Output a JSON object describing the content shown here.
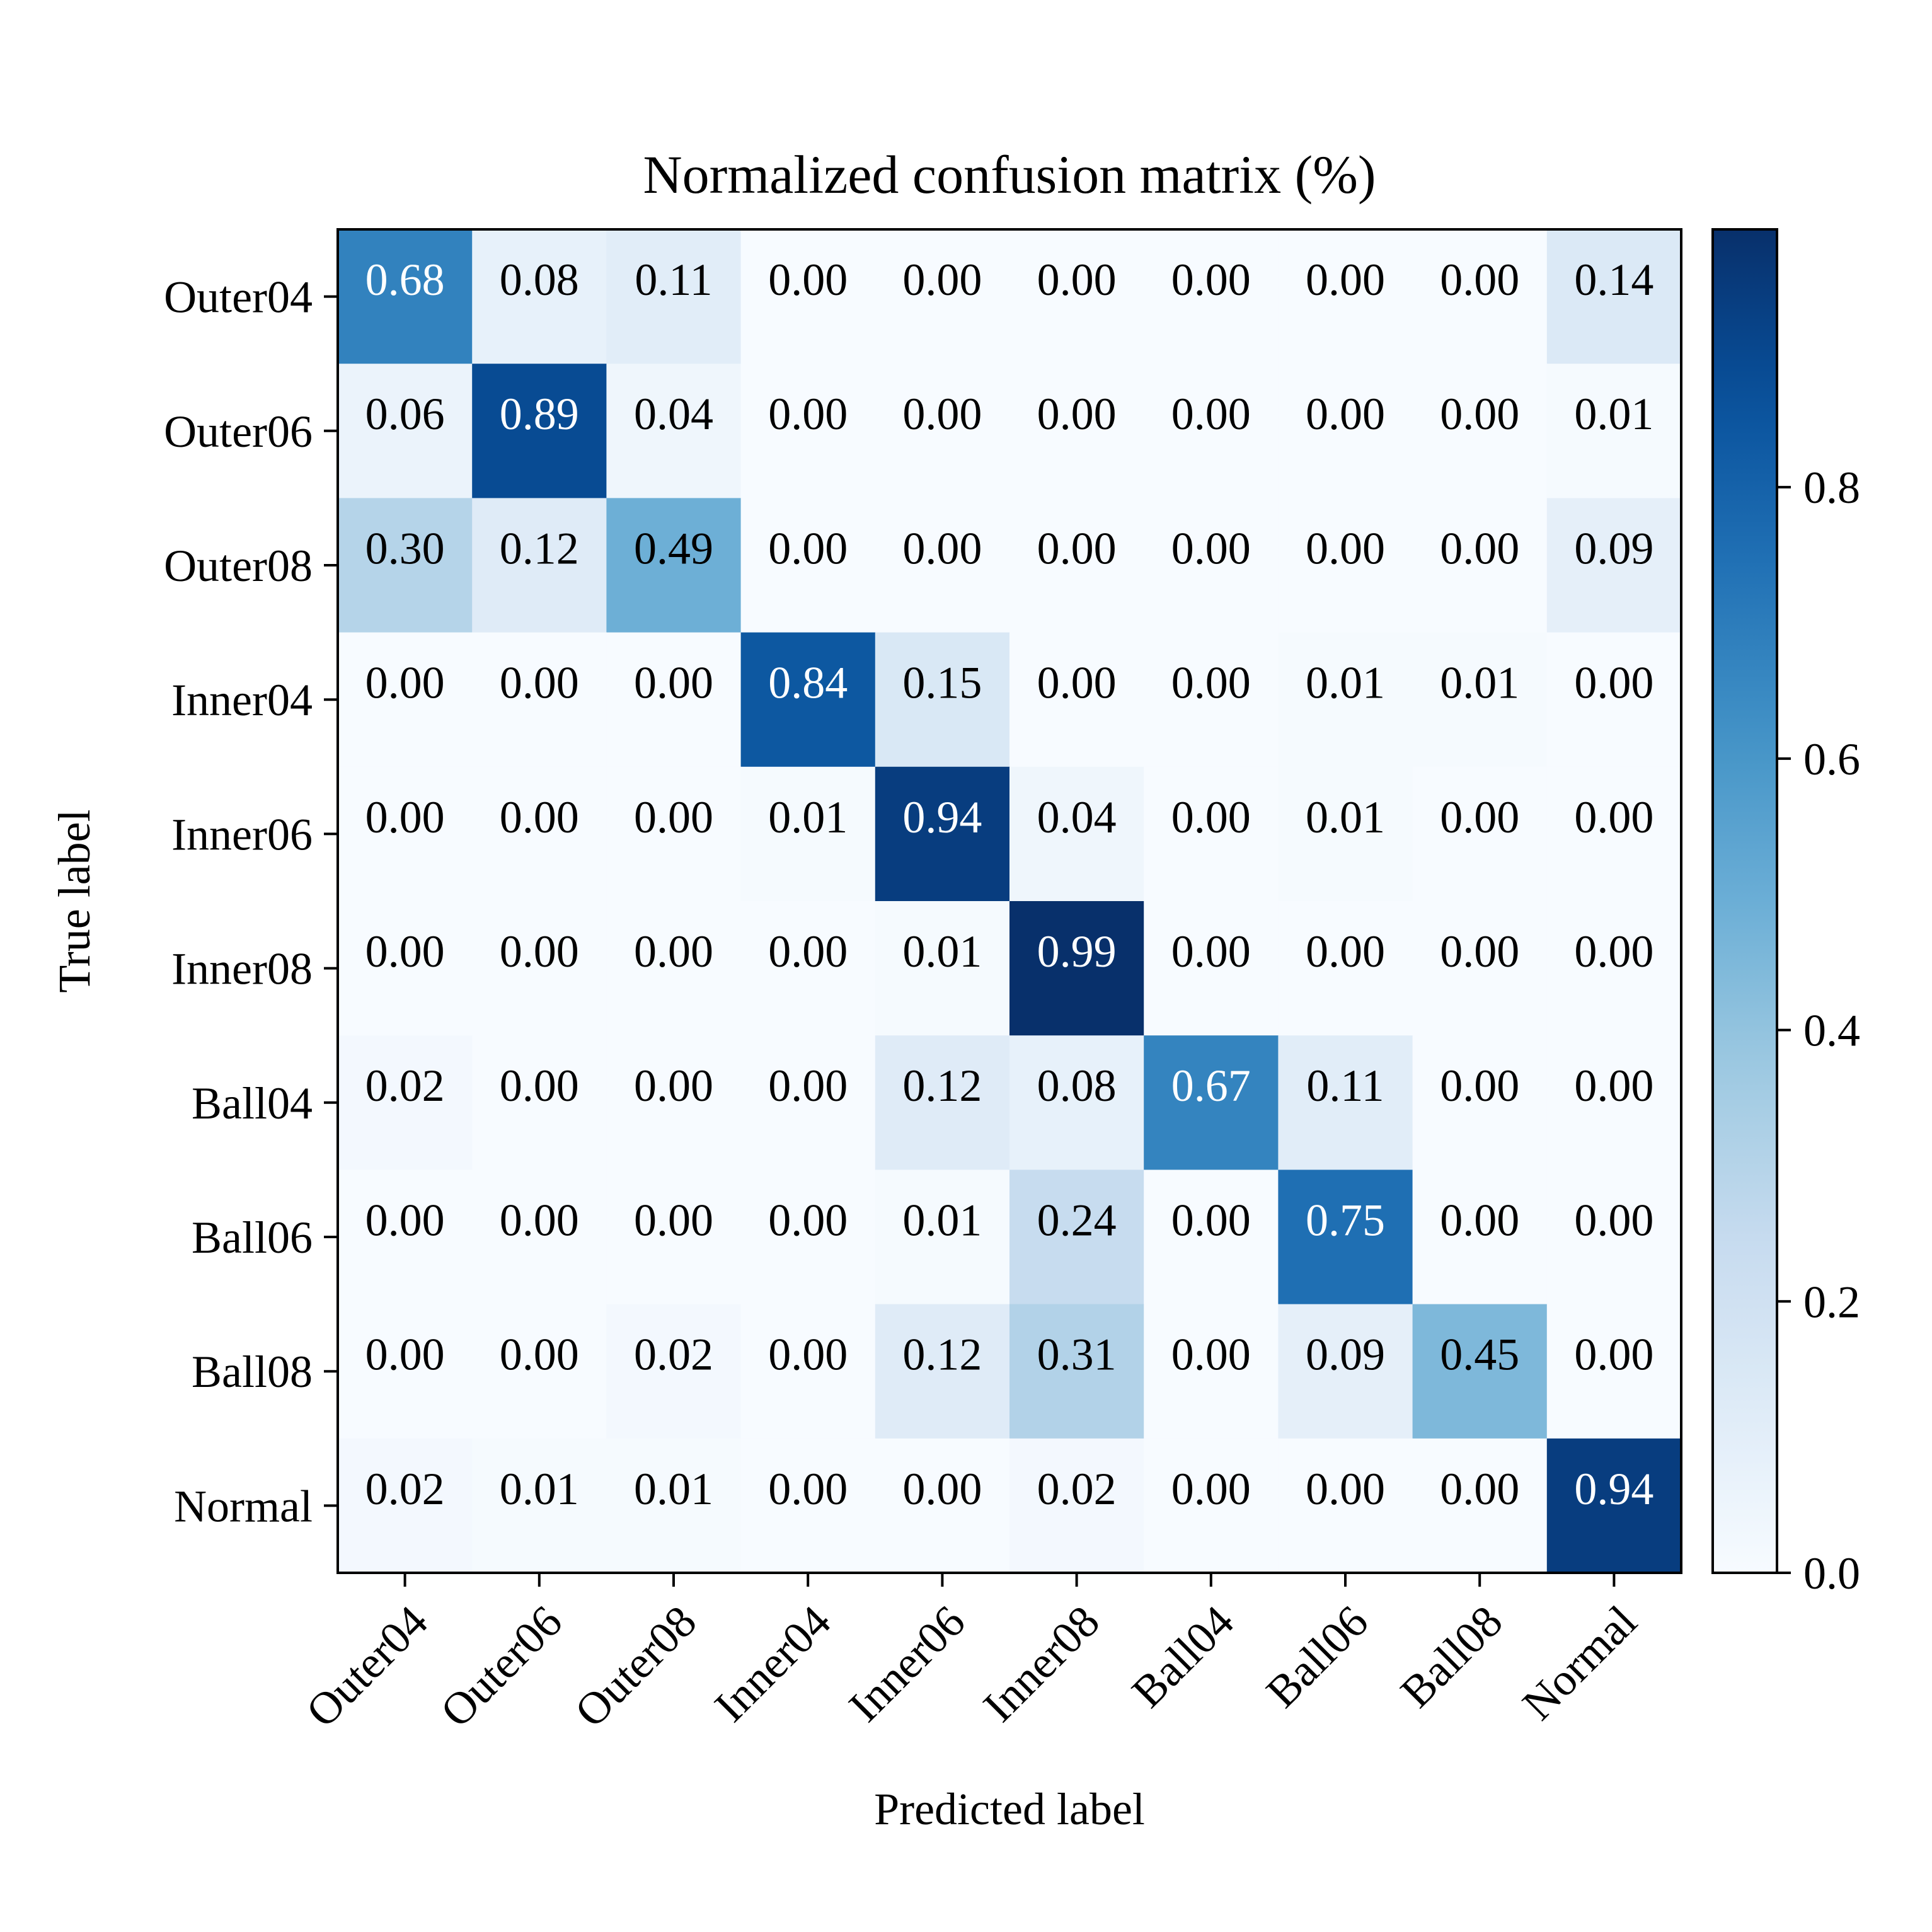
{
  "chart_data": {
    "type": "heatmap",
    "title": "Normalized confusion matrix (%)",
    "xlabel": "Predicted label",
    "ylabel": "True label",
    "categories": [
      "Outer04",
      "Outer06",
      "Outer08",
      "Inner04",
      "Inner06",
      "Inner08",
      "Ball04",
      "Ball06",
      "Ball08",
      "Normal"
    ],
    "matrix": [
      [
        0.68,
        0.08,
        0.11,
        0.0,
        0.0,
        0.0,
        0.0,
        0.0,
        0.0,
        0.14
      ],
      [
        0.06,
        0.89,
        0.04,
        0.0,
        0.0,
        0.0,
        0.0,
        0.0,
        0.0,
        0.01
      ],
      [
        0.3,
        0.12,
        0.49,
        0.0,
        0.0,
        0.0,
        0.0,
        0.0,
        0.0,
        0.09
      ],
      [
        0.0,
        0.0,
        0.0,
        0.84,
        0.15,
        0.0,
        0.0,
        0.01,
        0.01,
        0.0
      ],
      [
        0.0,
        0.0,
        0.0,
        0.01,
        0.94,
        0.04,
        0.0,
        0.01,
        0.0,
        0.0
      ],
      [
        0.0,
        0.0,
        0.0,
        0.0,
        0.01,
        0.99,
        0.0,
        0.0,
        0.0,
        0.0
      ],
      [
        0.02,
        0.0,
        0.0,
        0.0,
        0.12,
        0.08,
        0.67,
        0.11,
        0.0,
        0.0
      ],
      [
        0.0,
        0.0,
        0.0,
        0.0,
        0.01,
        0.24,
        0.0,
        0.75,
        0.0,
        0.0
      ],
      [
        0.0,
        0.0,
        0.02,
        0.0,
        0.12,
        0.31,
        0.0,
        0.09,
        0.45,
        0.0
      ],
      [
        0.02,
        0.01,
        0.01,
        0.0,
        0.0,
        0.02,
        0.0,
        0.0,
        0.0,
        0.94
      ]
    ],
    "colormap": "Blues",
    "value_range": [
      0.0,
      0.99
    ],
    "colorbar_ticks": [
      "0.0",
      "0.2",
      "0.4",
      "0.6",
      "0.8"
    ],
    "colorbar_tick_values": [
      0.0,
      0.2,
      0.4,
      0.6,
      0.8
    ],
    "grid": false
  }
}
